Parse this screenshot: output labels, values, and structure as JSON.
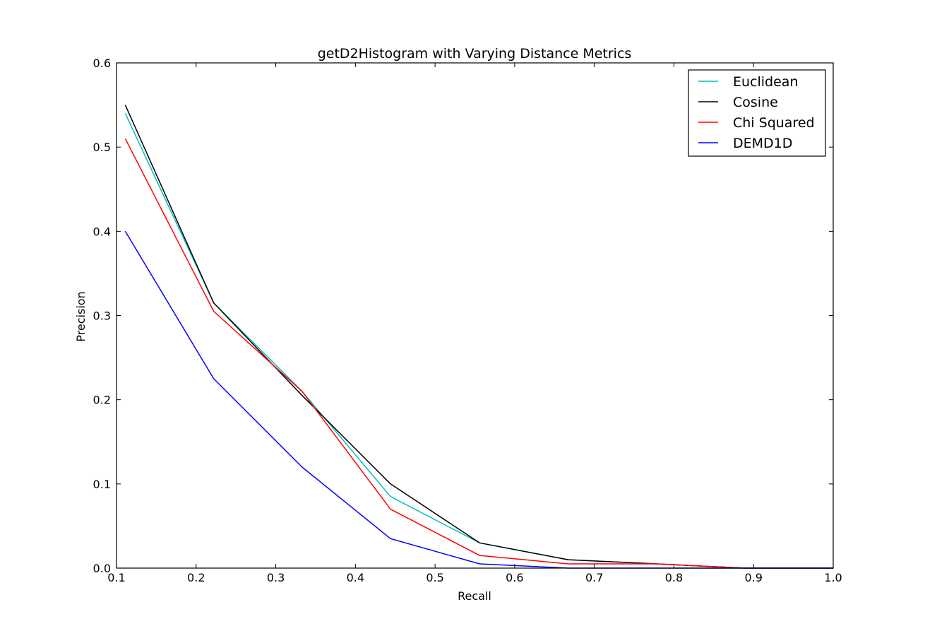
{
  "chart_data": {
    "type": "line",
    "title": "getD2Histogram with Varying Distance Metrics",
    "xlabel": "Recall",
    "ylabel": "Precision",
    "xlim": [
      0.1,
      1.0
    ],
    "ylim": [
      0.0,
      0.6
    ],
    "xticks": [
      "0.1",
      "0.2",
      "0.3",
      "0.4",
      "0.5",
      "0.6",
      "0.7",
      "0.8",
      "0.9",
      "1.0"
    ],
    "yticks": [
      "0.0",
      "0.1",
      "0.2",
      "0.3",
      "0.4",
      "0.5",
      "0.6"
    ],
    "grid": false,
    "legend_position": "top-right",
    "x": [
      0.111,
      0.222,
      0.333,
      0.444,
      0.556,
      0.667,
      0.778,
      0.889,
      1.0
    ],
    "series": [
      {
        "name": "Euclidean",
        "color": "#00bfbf",
        "values": [
          0.54,
          0.315,
          0.21,
          0.085,
          0.03,
          0.01,
          0.005,
          0.0,
          0.0
        ]
      },
      {
        "name": "Cosine",
        "color": "#000000",
        "values": [
          0.55,
          0.315,
          0.205,
          0.1,
          0.03,
          0.01,
          0.005,
          0.0,
          0.0
        ]
      },
      {
        "name": "Chi Squared",
        "color": "#ff0000",
        "values": [
          0.51,
          0.305,
          0.21,
          0.07,
          0.015,
          0.005,
          0.005,
          0.0,
          0.0
        ]
      },
      {
        "name": "DEMD1D",
        "color": "#0000ff",
        "values": [
          0.4,
          0.225,
          0.12,
          0.035,
          0.005,
          0.0,
          0.0,
          0.0,
          0.0
        ]
      }
    ]
  }
}
